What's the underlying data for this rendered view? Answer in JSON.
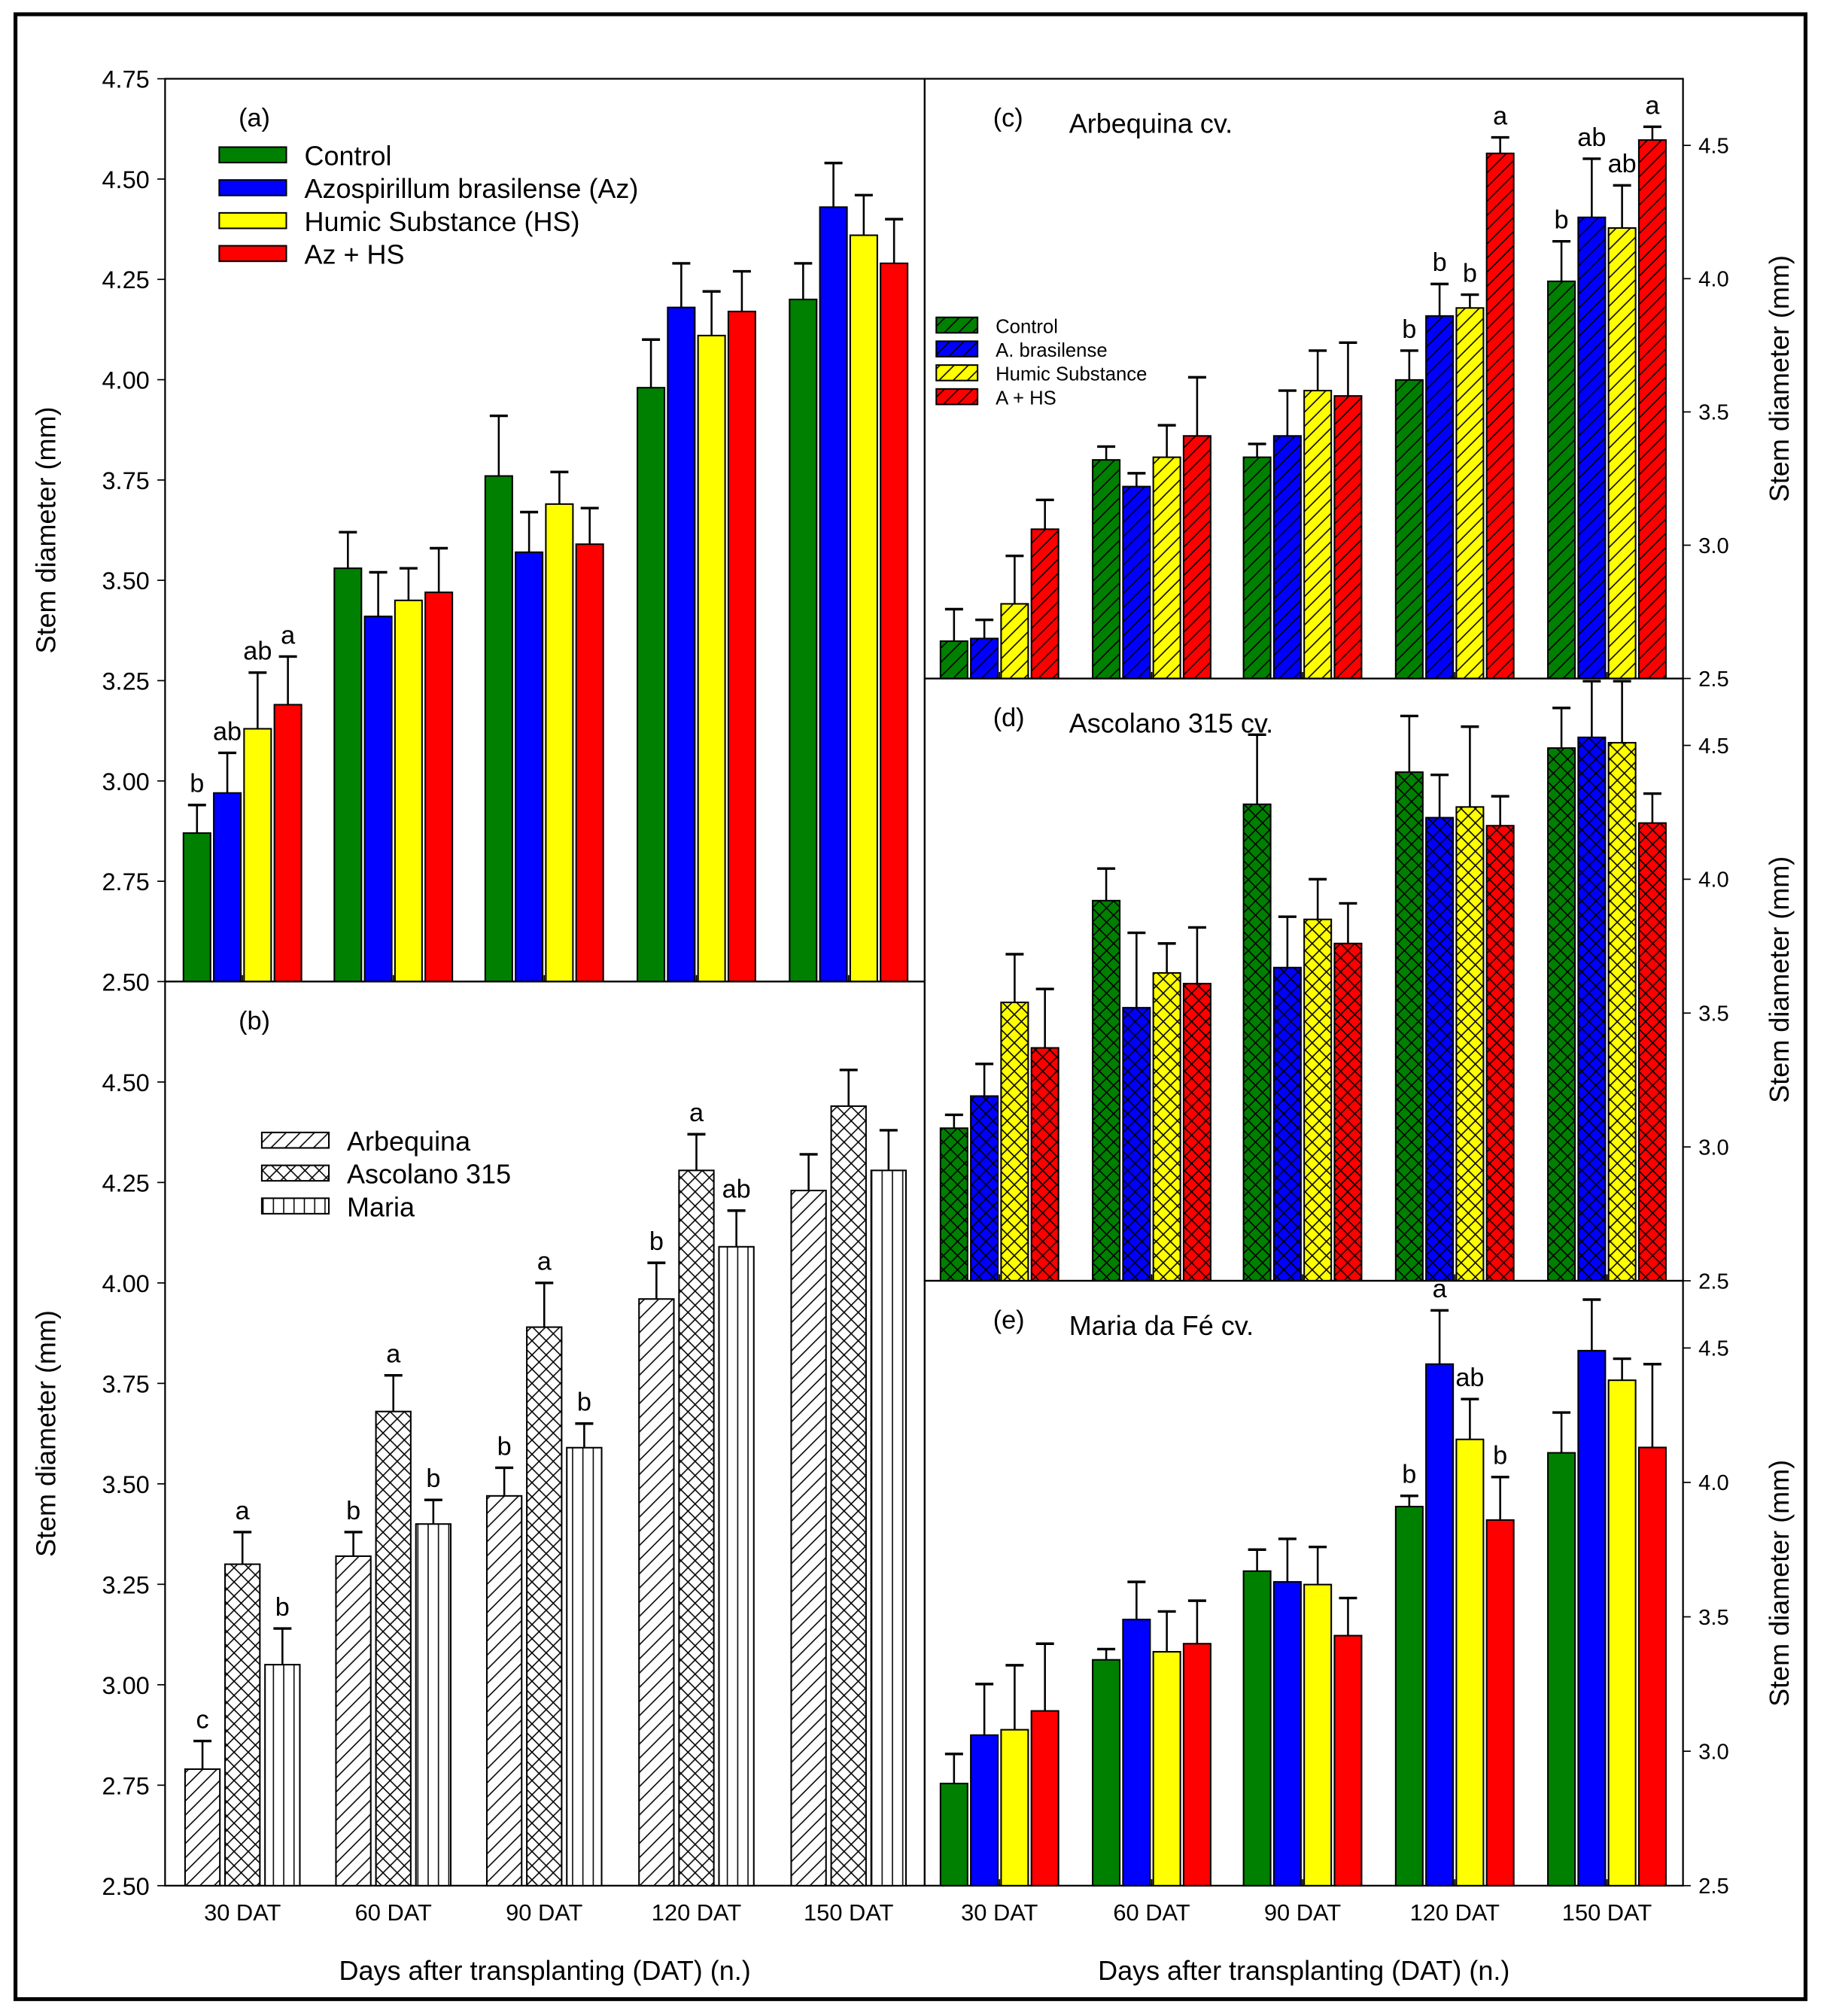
{
  "chart_data": [
    {
      "id": "a",
      "type": "bar",
      "label": "(a)",
      "title": "",
      "categories": [
        "30 DAT",
        "60 DAT",
        "90 DAT",
        "120 DAT",
        "150 DAT"
      ],
      "ylabel": "Stem diameter (mm)",
      "xlabel": "",
      "ylim": [
        2.5,
        4.75
      ],
      "yticks": [
        2.5,
        2.75,
        3.0,
        3.25,
        3.5,
        3.75,
        4.0,
        4.25,
        4.5,
        4.75
      ],
      "ytick_labels": [
        "2.50",
        "2.75",
        "3.00",
        "3.25",
        "3.50",
        "3.75",
        "4.00",
        "4.25",
        "4.50",
        "4.75"
      ],
      "legend": [
        "Control",
        "Azospirillum brasilense (Az)",
        "Humic Substance (HS)",
        "Az + HS"
      ],
      "series": [
        {
          "name": "Control",
          "color": "#008000",
          "values": [
            2.87,
            3.53,
            3.76,
            3.98,
            4.2
          ],
          "errors": [
            0.07,
            0.09,
            0.15,
            0.12,
            0.09
          ],
          "letters": [
            "b",
            "",
            "",
            "",
            ""
          ]
        },
        {
          "name": "Azospirillum brasilense (Az)",
          "color": "#0000ff",
          "values": [
            2.97,
            3.41,
            3.57,
            4.18,
            4.43
          ],
          "errors": [
            0.1,
            0.11,
            0.1,
            0.11,
            0.11
          ],
          "letters": [
            "ab",
            "",
            "",
            "",
            ""
          ]
        },
        {
          "name": "Humic Substance (HS)",
          "color": "#ffff00",
          "values": [
            3.13,
            3.45,
            3.69,
            4.11,
            4.36
          ],
          "errors": [
            0.14,
            0.08,
            0.08,
            0.11,
            0.1
          ],
          "letters": [
            "ab",
            "",
            "",
            "",
            ""
          ]
        },
        {
          "name": "Az + HS",
          "color": "#ff0000",
          "values": [
            3.19,
            3.47,
            3.59,
            4.17,
            4.29
          ],
          "errors": [
            0.12,
            0.11,
            0.09,
            0.1,
            0.11
          ],
          "letters": [
            "a",
            "",
            "",
            "",
            ""
          ]
        }
      ]
    },
    {
      "id": "b",
      "type": "bar",
      "label": "(b)",
      "title": "",
      "categories": [
        "30 DAT",
        "60 DAT",
        "90 DAT",
        "120 DAT",
        "150 DAT"
      ],
      "ylabel": "Stem diameter (mm)",
      "xlabel": "Days after transplanting (DAT) (n.)",
      "ylim": [
        2.5,
        4.75
      ],
      "yticks": [
        2.5,
        2.75,
        3.0,
        3.25,
        3.5,
        3.75,
        4.0,
        4.25,
        4.5
      ],
      "ytick_labels": [
        "2.50",
        "2.75",
        "3.00",
        "3.25",
        "3.50",
        "3.75",
        "4.00",
        "4.25",
        "4.50"
      ],
      "legend": [
        "Arbequina",
        "Ascolano 315",
        "Maria"
      ],
      "series": [
        {
          "name": "Arbequina",
          "color": "#ffffff",
          "pattern": "diag",
          "values": [
            2.79,
            3.32,
            3.47,
            3.96,
            4.23
          ],
          "errors": [
            0.07,
            0.06,
            0.07,
            0.09,
            0.09
          ],
          "letters": [
            "c",
            "b",
            "b",
            "b",
            ""
          ]
        },
        {
          "name": "Ascolano 315",
          "color": "#ffffff",
          "pattern": "cross",
          "values": [
            3.3,
            3.68,
            3.89,
            4.28,
            4.44
          ],
          "errors": [
            0.08,
            0.09,
            0.11,
            0.09,
            0.09
          ],
          "letters": [
            "a",
            "a",
            "a",
            "a",
            ""
          ]
        },
        {
          "name": "Maria",
          "color": "#ffffff",
          "pattern": "vert",
          "values": [
            3.05,
            3.4,
            3.59,
            4.09,
            4.28
          ],
          "errors": [
            0.09,
            0.06,
            0.06,
            0.09,
            0.1
          ],
          "letters": [
            "b",
            "b",
            "b",
            "ab",
            ""
          ]
        }
      ]
    },
    {
      "id": "c",
      "type": "bar",
      "label": "(c)",
      "title": "Arbequina cv.",
      "categories": [
        "30 DAT",
        "60 DAT",
        "90 DAT",
        "120 DAT",
        "150 DAT"
      ],
      "ylabel": "Stem diameter (mm)",
      "xlabel": "",
      "ylim": [
        2.5,
        4.75
      ],
      "yticks": [
        2.5,
        3.0,
        3.5,
        4.0,
        4.5
      ],
      "ytick_labels": [
        "2.5",
        "3.0",
        "3.5",
        "4.0",
        "4.5"
      ],
      "legend": [
        "Control",
        "A. brasilense",
        "Humic Substance",
        "A + HS"
      ],
      "series": [
        {
          "name": "Control",
          "color": "#008000",
          "values": [
            2.64,
            3.32,
            3.33,
            3.62,
            3.99
          ],
          "errors": [
            0.12,
            0.05,
            0.05,
            0.11,
            0.15
          ],
          "letters": [
            "",
            "",
            "",
            "b",
            "b"
          ]
        },
        {
          "name": "A. brasilense",
          "color": "#0000ff",
          "values": [
            2.65,
            3.22,
            3.41,
            3.86,
            4.23
          ],
          "errors": [
            0.07,
            0.05,
            0.17,
            0.12,
            0.22
          ],
          "letters": [
            "",
            "",
            "",
            "b",
            "ab"
          ]
        },
        {
          "name": "Humic Substance",
          "color": "#ffff00",
          "values": [
            2.78,
            3.33,
            3.58,
            3.89,
            4.19
          ],
          "errors": [
            0.18,
            0.12,
            0.15,
            0.05,
            0.16
          ],
          "letters": [
            "",
            "",
            "",
            "b",
            "ab"
          ]
        },
        {
          "name": "A + HS",
          "color": "#ff0000",
          "values": [
            3.06,
            3.41,
            3.56,
            4.47,
            4.52
          ],
          "errors": [
            0.11,
            0.22,
            0.2,
            0.06,
            0.05
          ],
          "letters": [
            "",
            "",
            "",
            "a",
            "a"
          ]
        }
      ]
    },
    {
      "id": "d",
      "type": "bar",
      "label": "(d)",
      "title": "Ascolano 315 cv.",
      "categories": [
        "30 DAT",
        "60 DAT",
        "90 DAT",
        "120 DAT",
        "150 DAT"
      ],
      "ylabel": "Stem diameter (mm)",
      "xlabel": "",
      "ylim": [
        2.5,
        4.75
      ],
      "yticks": [
        2.5,
        3.0,
        3.5,
        4.0,
        4.5
      ],
      "ytick_labels": [
        "2.5",
        "3.0",
        "3.5",
        "4.0",
        "4.5"
      ],
      "series": [
        {
          "name": "Control",
          "color": "#008000",
          "values": [
            3.07,
            3.92,
            4.28,
            4.4,
            4.49
          ],
          "errors": [
            0.05,
            0.12,
            0.26,
            0.21,
            0.15
          ],
          "letters": [
            "",
            "",
            "",
            "",
            ""
          ]
        },
        {
          "name": "A. brasilense",
          "color": "#0000ff",
          "values": [
            3.19,
            3.52,
            3.67,
            4.23,
            4.53
          ],
          "errors": [
            0.12,
            0.28,
            0.19,
            0.16,
            0.21
          ],
          "letters": [
            "",
            "",
            "",
            "",
            ""
          ]
        },
        {
          "name": "Humic Substance",
          "color": "#ffff00",
          "values": [
            3.54,
            3.65,
            3.85,
            4.27,
            4.51
          ],
          "errors": [
            0.18,
            0.11,
            0.15,
            0.3,
            0.23
          ],
          "letters": [
            "",
            "",
            "",
            "",
            ""
          ]
        },
        {
          "name": "A + HS",
          "color": "#ff0000",
          "values": [
            3.37,
            3.61,
            3.76,
            4.2,
            4.21
          ],
          "errors": [
            0.22,
            0.21,
            0.15,
            0.11,
            0.11
          ],
          "letters": [
            "",
            "",
            "",
            "",
            ""
          ]
        }
      ]
    },
    {
      "id": "e",
      "type": "bar",
      "label": "(e)",
      "title": "Maria da Fé cv.",
      "categories": [
        "30 DAT",
        "60 DAT",
        "90 DAT",
        "120 DAT",
        "150 DAT"
      ],
      "ylabel": "Stem diameter (mm)",
      "xlabel": "Days after transplanting (DAT) (n.)",
      "ylim": [
        2.5,
        4.75
      ],
      "yticks": [
        2.5,
        3.0,
        3.5,
        4.0,
        4.5
      ],
      "ytick_labels": [
        "2.5",
        "3.0",
        "3.5",
        "4.0",
        "4.5"
      ],
      "series": [
        {
          "name": "Control",
          "color": "#008000",
          "values": [
            2.88,
            3.34,
            3.67,
            3.91,
            4.11
          ],
          "errors": [
            0.11,
            0.04,
            0.08,
            0.04,
            0.15
          ],
          "letters": [
            "",
            "",
            "",
            "b",
            ""
          ]
        },
        {
          "name": "A. brasilense",
          "color": "#0000ff",
          "values": [
            3.06,
            3.49,
            3.63,
            4.44,
            4.49
          ],
          "errors": [
            0.19,
            0.14,
            0.16,
            0.2,
            0.19
          ],
          "letters": [
            "",
            "",
            "",
            "a",
            ""
          ]
        },
        {
          "name": "Humic Substance",
          "color": "#ffff00",
          "values": [
            3.08,
            3.37,
            3.62,
            4.16,
            4.38
          ],
          "errors": [
            0.24,
            0.15,
            0.14,
            0.15,
            0.08
          ],
          "letters": [
            "",
            "",
            "",
            "ab",
            ""
          ]
        },
        {
          "name": "A + HS",
          "color": "#ff0000",
          "values": [
            3.15,
            3.4,
            3.43,
            3.86,
            4.13
          ],
          "errors": [
            0.25,
            0.16,
            0.14,
            0.16,
            0.31
          ],
          "letters": [
            "",
            "",
            "",
            "b",
            ""
          ]
        }
      ]
    }
  ]
}
